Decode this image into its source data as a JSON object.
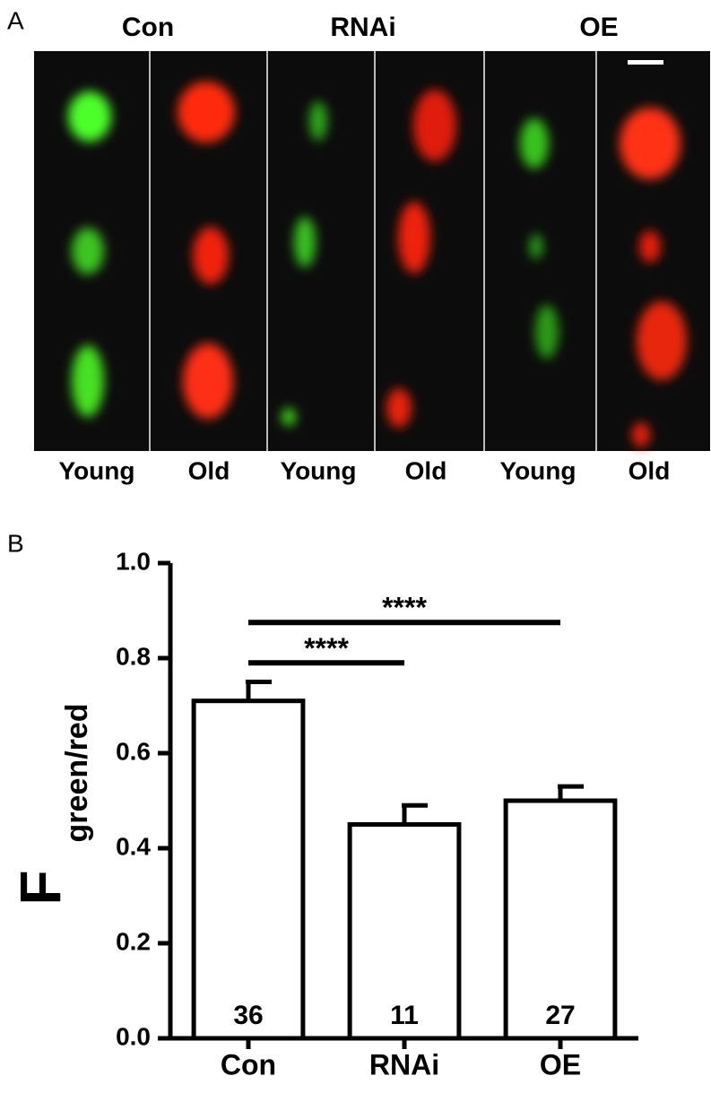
{
  "panel_a": {
    "label": "A",
    "groups": [
      "Con",
      "RNAi",
      "OE"
    ],
    "columns": [
      "Young",
      "Old",
      "Young",
      "Old",
      "Young",
      "Old"
    ]
  },
  "chart_data": {
    "type": "bar",
    "panel_label": "B",
    "ylabel": "F",
    "ylabel_sub": "green/red",
    "categories": [
      "Con",
      "RNAi",
      "OE"
    ],
    "values": [
      0.71,
      0.45,
      0.5
    ],
    "errors": [
      0.04,
      0.04,
      0.03
    ],
    "counts": [
      36,
      11,
      27
    ],
    "color": "#ffffff",
    "ylim": [
      0,
      1
    ],
    "yticks": [
      {
        "value": 0,
        "label": "0.0"
      },
      0.2,
      0.4,
      0.6,
      0.8,
      {
        "value": 1,
        "label": "1.0"
      }
    ],
    "comparisons": [
      {
        "from": 0,
        "to": 1,
        "y": 0.79,
        "label": "****"
      },
      {
        "from": 0,
        "to": 2,
        "y": 0.875,
        "label": "****"
      }
    ]
  }
}
